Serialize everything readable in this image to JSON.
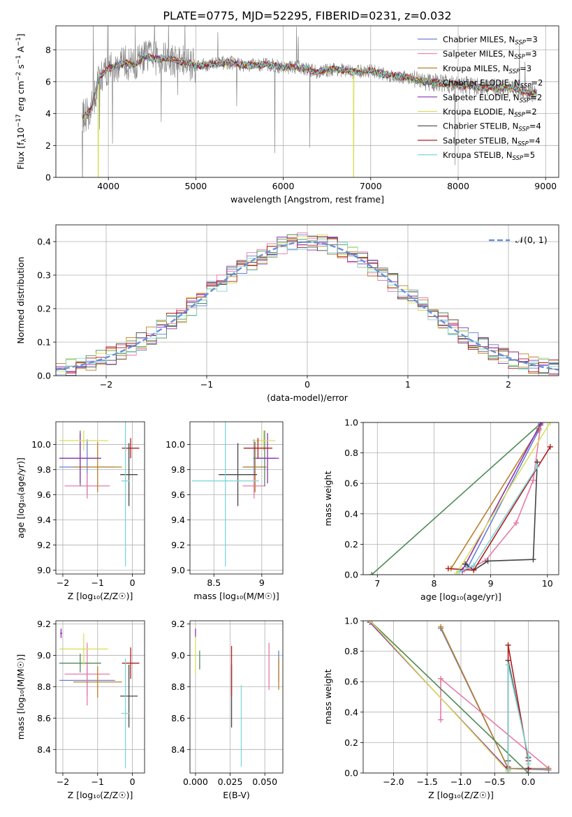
{
  "title": "PLATE=0775, MJD=52295, FIBERID=0231, z=0.032",
  "models": [
    {
      "name": "Chabrier MILES, N",
      "sub": "SSP",
      "eq": "=3",
      "color": "#6a7fd6"
    },
    {
      "name": "Salpeter MILES, N",
      "sub": "SSP",
      "eq": "=3",
      "color": "#e87aa8"
    },
    {
      "name": "Kroupa MILES, N",
      "sub": "SSP",
      "eq": "=3",
      "color": "#b9812a"
    },
    {
      "name": "Chabrier ELODIE, N",
      "sub": "SSP",
      "eq": "=2",
      "color": "#4f8a58"
    },
    {
      "name": "Salpeter ELODIE, N",
      "sub": "SSP",
      "eq": "=2",
      "color": "#8e2fb0"
    },
    {
      "name": "Kroupa ELODIE, N",
      "sub": "SSP",
      "eq": "=2",
      "color": "#d8e05a"
    },
    {
      "name": "Chabrier STELIB, N",
      "sub": "SSP",
      "eq": "=4",
      "color": "#444444"
    },
    {
      "name": "Salpeter STELIB, N",
      "sub": "SSP",
      "eq": "=4",
      "color": "#b01c1c"
    },
    {
      "name": "Kroupa STELIB, N",
      "sub": "SSP",
      "eq": "=5",
      "color": "#7fd6d8"
    }
  ],
  "chart_data": [
    {
      "type": "line",
      "id": "spectrum",
      "xlabel": "wavelength [Angstrom, rest frame]",
      "ylabel_parts": [
        "Flux [f",
        "λ",
        "10",
        "−17",
        " erg cm",
        "−2",
        " s",
        "−1",
        " A",
        "−1",
        "]"
      ],
      "xlim": [
        3400,
        9150
      ],
      "ylim": [
        0,
        9.5
      ],
      "xticks": [
        4000,
        5000,
        6000,
        7000,
        8000,
        9000
      ],
      "yticks": [
        0,
        2,
        4,
        6,
        8
      ],
      "data_color": "#888888",
      "continuum": {
        "x": [
          3700,
          3760,
          3800,
          3900,
          4000,
          4100,
          4200,
          4300,
          4400,
          4500,
          4700,
          4900,
          5000,
          5200,
          5400,
          5600,
          5800,
          6000,
          6200,
          6400,
          6600,
          6800,
          7000,
          7200,
          7400,
          7600,
          7800,
          8000,
          8200,
          8400,
          8600,
          8800
        ],
        "y": [
          3.8,
          3.9,
          4.2,
          6.3,
          6.8,
          7.0,
          7.2,
          7.0,
          7.6,
          7.5,
          7.4,
          7.2,
          7.0,
          7.1,
          7.2,
          7.0,
          7.1,
          6.9,
          6.9,
          6.6,
          6.8,
          6.6,
          6.7,
          6.4,
          6.3,
          6.0,
          5.9,
          5.8,
          5.7,
          5.6,
          5.6,
          5.3
        ]
      },
      "model_drops": [
        {
          "x": 4985,
          "model": 2
        },
        {
          "x": 7435,
          "model": 2
        },
        {
          "x": 6800,
          "model": 5
        },
        {
          "x": 3880,
          "model": 5
        }
      ]
    },
    {
      "type": "histogram",
      "id": "residuals",
      "xlabel": "(data-model)/error",
      "ylabel": "Normed distribution",
      "xlim": [
        -2.5,
        2.5
      ],
      "ylim": [
        0,
        0.45
      ],
      "xticks": [
        -2,
        -1,
        0,
        1,
        2
      ],
      "yticks": [
        0.0,
        0.1,
        0.2,
        0.3,
        0.4
      ],
      "bin_width": 0.1,
      "gaussian": {
        "label": "𝒩(0, 1)",
        "color": "#6a8fd8"
      }
    },
    {
      "type": "errorbar",
      "id": "age-vs-Z",
      "xlabel": "Z [log₁₀(Z/Z☉)]",
      "ylabel": "age  [log₁₀(age/yr)]",
      "xlim": [
        -2.2,
        0.35
      ],
      "ylim": [
        8.97,
        10.18
      ],
      "xticks": [
        -2,
        -1,
        0
      ],
      "yticks": [
        9.0,
        9.2,
        9.4,
        9.6,
        9.8,
        10.0
      ],
      "points": [
        {
          "m": 0,
          "x": -1.3,
          "xe": 0.8,
          "y": 9.82,
          "ye": 0.22
        },
        {
          "m": 1,
          "x": -1.3,
          "xe": 0.65,
          "y": 9.67,
          "ye": 0.1
        },
        {
          "m": 2,
          "x": -1.0,
          "xe": 0.7,
          "y": 9.82,
          "ye": 0.2
        },
        {
          "m": 3,
          "x": -1.5,
          "xe": 0.6,
          "y": 9.89,
          "ye": 0.22
        },
        {
          "m": 4,
          "x": -1.5,
          "xe": 0.6,
          "y": 9.89,
          "ye": 0.2
        },
        {
          "m": 5,
          "x": -1.4,
          "xe": 0.7,
          "y": 10.03,
          "ye": 0.08
        },
        {
          "m": 6,
          "x": -0.1,
          "xe": 0.25,
          "y": 9.76,
          "ye": 0.25
        },
        {
          "m": 7,
          "x": -0.05,
          "xe": 0.25,
          "y": 9.97,
          "ye": 0.08
        },
        {
          "m": 8,
          "x": -0.2,
          "xe": 0.12,
          "y": 9.71,
          "ye": 0.68
        }
      ]
    },
    {
      "type": "errorbar",
      "id": "age-vs-mass",
      "xlabel": "mass [log₁₀(M/M☉)]",
      "ylabel": "",
      "xlim": [
        8.25,
        9.22
      ],
      "ylim": [
        8.97,
        10.18
      ],
      "xticks": [
        8.5,
        9.0
      ],
      "yticks": [
        9.0,
        9.2,
        9.4,
        9.6,
        9.8,
        10.0
      ],
      "points": [
        {
          "m": 0,
          "x": 8.92,
          "xe": 0.12,
          "y": 9.82,
          "ye": 0.22
        },
        {
          "m": 1,
          "x": 8.92,
          "xe": 0.12,
          "y": 9.67,
          "ye": 0.1
        },
        {
          "m": 2,
          "x": 8.93,
          "xe": 0.12,
          "y": 9.82,
          "ye": 0.2
        },
        {
          "m": 3,
          "x": 9.03,
          "xe": 0.12,
          "y": 9.89,
          "ye": 0.22
        },
        {
          "m": 4,
          "x": 9.06,
          "xe": 0.12,
          "y": 9.89,
          "ye": 0.2
        },
        {
          "m": 5,
          "x": 9.02,
          "xe": 0.12,
          "y": 10.03,
          "ye": 0.08
        },
        {
          "m": 6,
          "x": 8.75,
          "xe": 0.2,
          "y": 9.76,
          "ye": 0.25
        },
        {
          "m": 7,
          "x": 8.96,
          "xe": 0.15,
          "y": 9.97,
          "ye": 0.08
        },
        {
          "m": 8,
          "x": 8.62,
          "xe": 0.35,
          "y": 9.71,
          "ye": 0.68
        }
      ]
    },
    {
      "type": "line",
      "id": "massweight-vs-age",
      "xlabel": "age  [log₁₀(age/yr)]",
      "ylabel": "mass weight",
      "xlim": [
        6.75,
        10.2
      ],
      "ylim": [
        0,
        1.0
      ],
      "xticks": [
        7,
        8,
        9,
        10
      ],
      "yticks": [
        0.0,
        0.2,
        0.4,
        0.6,
        0.8,
        1.0
      ],
      "series": [
        {
          "m": 0,
          "x": [
            8.6,
            9.85
          ],
          "y": [
            0.05,
            0.95
          ]
        },
        {
          "m": 1,
          "x": [
            8.5,
            8.9,
            9.45,
            9.75,
            9.88
          ],
          "y": [
            0.02,
            0.09,
            0.34,
            0.62,
            0.98
          ]
        },
        {
          "m": 2,
          "x": [
            8.3,
            9.85
          ],
          "y": [
            0.04,
            0.96
          ]
        },
        {
          "m": 3,
          "x": [
            6.9,
            9.9
          ],
          "y": [
            0.0,
            1.0
          ]
        },
        {
          "m": 4,
          "x": [
            8.5,
            9.88
          ],
          "y": [
            0.03,
            0.99
          ]
        },
        {
          "m": 5,
          "x": [
            8.4,
            10.05
          ],
          "y": [
            0.01,
            1.0
          ]
        },
        {
          "m": 6,
          "x": [
            8.55,
            8.7,
            8.95,
            9.75,
            9.82
          ],
          "y": [
            0.07,
            0.03,
            0.09,
            0.1,
            0.74
          ]
        },
        {
          "m": 7,
          "x": [
            8.25,
            8.7,
            10.05
          ],
          "y": [
            0.04,
            0.03,
            0.84
          ]
        },
        {
          "m": 8,
          "x": [
            8.45,
            8.7,
            9.82
          ],
          "y": [
            0.02,
            0.06,
            0.71
          ]
        }
      ]
    },
    {
      "type": "errorbar",
      "id": "mass-vs-Z",
      "xlabel": "Z [log₁₀(Z/Z☉)]",
      "ylabel": "mass [log₁₀(M/M☉)]",
      "xlim": [
        -2.2,
        0.35
      ],
      "ylim": [
        8.25,
        9.22
      ],
      "xticks": [
        -2,
        -1,
        0
      ],
      "yticks": [
        8.4,
        8.6,
        8.8,
        9.0,
        9.2
      ],
      "points": [
        {
          "m": 0,
          "x": -1.3,
          "xe": 0.8,
          "y": 8.84,
          "ye": 0.1
        },
        {
          "m": 1,
          "x": -1.3,
          "xe": 0.65,
          "y": 8.88,
          "ye": 0.2
        },
        {
          "m": 2,
          "x": -1.0,
          "xe": 0.7,
          "y": 8.83,
          "ye": 0.1
        },
        {
          "m": 3,
          "x": -1.5,
          "xe": 0.6,
          "y": 8.95,
          "ye": 0.06
        },
        {
          "m": 4,
          "x": -2.05,
          "xe": 0.03,
          "y": 9.14,
          "ye": 0.03
        },
        {
          "m": 5,
          "x": -1.4,
          "xe": 0.7,
          "y": 9.04,
          "ye": 0.1
        },
        {
          "m": 6,
          "x": -0.1,
          "xe": 0.25,
          "y": 8.74,
          "ye": 0.2
        },
        {
          "m": 7,
          "x": -0.05,
          "xe": 0.25,
          "y": 8.95,
          "ye": 0.1
        },
        {
          "m": 8,
          "x": -0.2,
          "xe": 0.12,
          "y": 8.63,
          "ye": 0.35
        }
      ]
    },
    {
      "type": "errorbar",
      "id": "mass-vs-EBV",
      "xlabel": "E(B-V)",
      "ylabel": "",
      "xlim": [
        -0.004,
        0.063
      ],
      "ylim": [
        8.25,
        9.22
      ],
      "xticks": [
        0.0,
        0.025,
        0.05
      ],
      "xtick_labels": [
        "0.000",
        "0.025",
        "0.050"
      ],
      "yticks": [
        8.4,
        8.6,
        8.8,
        9.0,
        9.2
      ],
      "points": [
        {
          "m": 0,
          "x": 0.06,
          "xe": 0,
          "y": 8.93,
          "ye": 0.1
        },
        {
          "m": 1,
          "x": 0.053,
          "xe": 0,
          "y": 8.93,
          "ye": 0.15
        },
        {
          "m": 2,
          "x": 0.06,
          "xe": 0,
          "y": 8.88,
          "ye": 0.1
        },
        {
          "m": 3,
          "x": 0.003,
          "xe": 0,
          "y": 8.97,
          "ye": 0.06
        },
        {
          "m": 4,
          "x": 0.0,
          "xe": 0,
          "y": 9.14,
          "ye": 0.03
        },
        {
          "m": 5,
          "x": 0.0,
          "xe": 0,
          "y": 9.0,
          "ye": 0.12
        },
        {
          "m": 6,
          "x": 0.026,
          "xe": 0,
          "y": 8.74,
          "ye": 0.2
        },
        {
          "m": 7,
          "x": 0.026,
          "xe": 0,
          "y": 8.9,
          "ye": 0.16
        },
        {
          "m": 8,
          "x": 0.033,
          "xe": 0,
          "y": 8.55,
          "ye": 0.26
        }
      ]
    },
    {
      "type": "line",
      "id": "massweight-vs-Z",
      "xlabel": "Z [log₁₀(Z/Z☉)]",
      "ylabel": "mass weight",
      "xlim": [
        -2.45,
        0.45
      ],
      "ylim": [
        0,
        1.0
      ],
      "xticks": [
        -2.0,
        -1.5,
        -1.0,
        -0.5,
        0.0
      ],
      "xtick_labels": [
        "−2.0",
        "−1.5",
        "−1.0",
        "−0.5",
        "0.0"
      ],
      "yticks": [
        0.0,
        0.2,
        0.4,
        0.6,
        0.8,
        1.0
      ],
      "series": [
        {
          "m": 0,
          "x": [
            -1.3,
            -0.3,
            0.3
          ],
          "y": [
            0.95,
            0.03,
            0.02
          ]
        },
        {
          "m": 1,
          "x": [
            -1.3,
            -1.3,
            0.3
          ],
          "y": [
            0.35,
            0.62,
            0.03
          ]
        },
        {
          "m": 2,
          "x": [
            -1.3,
            -0.3,
            0.3
          ],
          "y": [
            0.96,
            0.03,
            0.03
          ]
        },
        {
          "m": 3,
          "x": [
            -2.35,
            0.0
          ],
          "y": [
            1.0,
            0.0
          ]
        },
        {
          "m": 4,
          "x": [
            -2.35,
            -0.3
          ],
          "y": [
            0.99,
            0.02
          ]
        },
        {
          "m": 5,
          "x": [
            -2.35,
            -0.3
          ],
          "y": [
            1.0,
            0.01
          ]
        },
        {
          "m": 6,
          "x": [
            -0.3,
            -0.3,
            0.0,
            0.0
          ],
          "y": [
            0.08,
            0.74,
            0.1,
            0.03
          ]
        },
        {
          "m": 7,
          "x": [
            -0.3,
            -0.3,
            0.0,
            0.0
          ],
          "y": [
            0.04,
            0.84,
            0.08,
            0.03
          ]
        },
        {
          "m": 8,
          "x": [
            -0.3,
            -0.3,
            0.0,
            0.0
          ],
          "y": [
            0.02,
            0.71,
            0.11,
            0.06
          ]
        }
      ]
    }
  ]
}
